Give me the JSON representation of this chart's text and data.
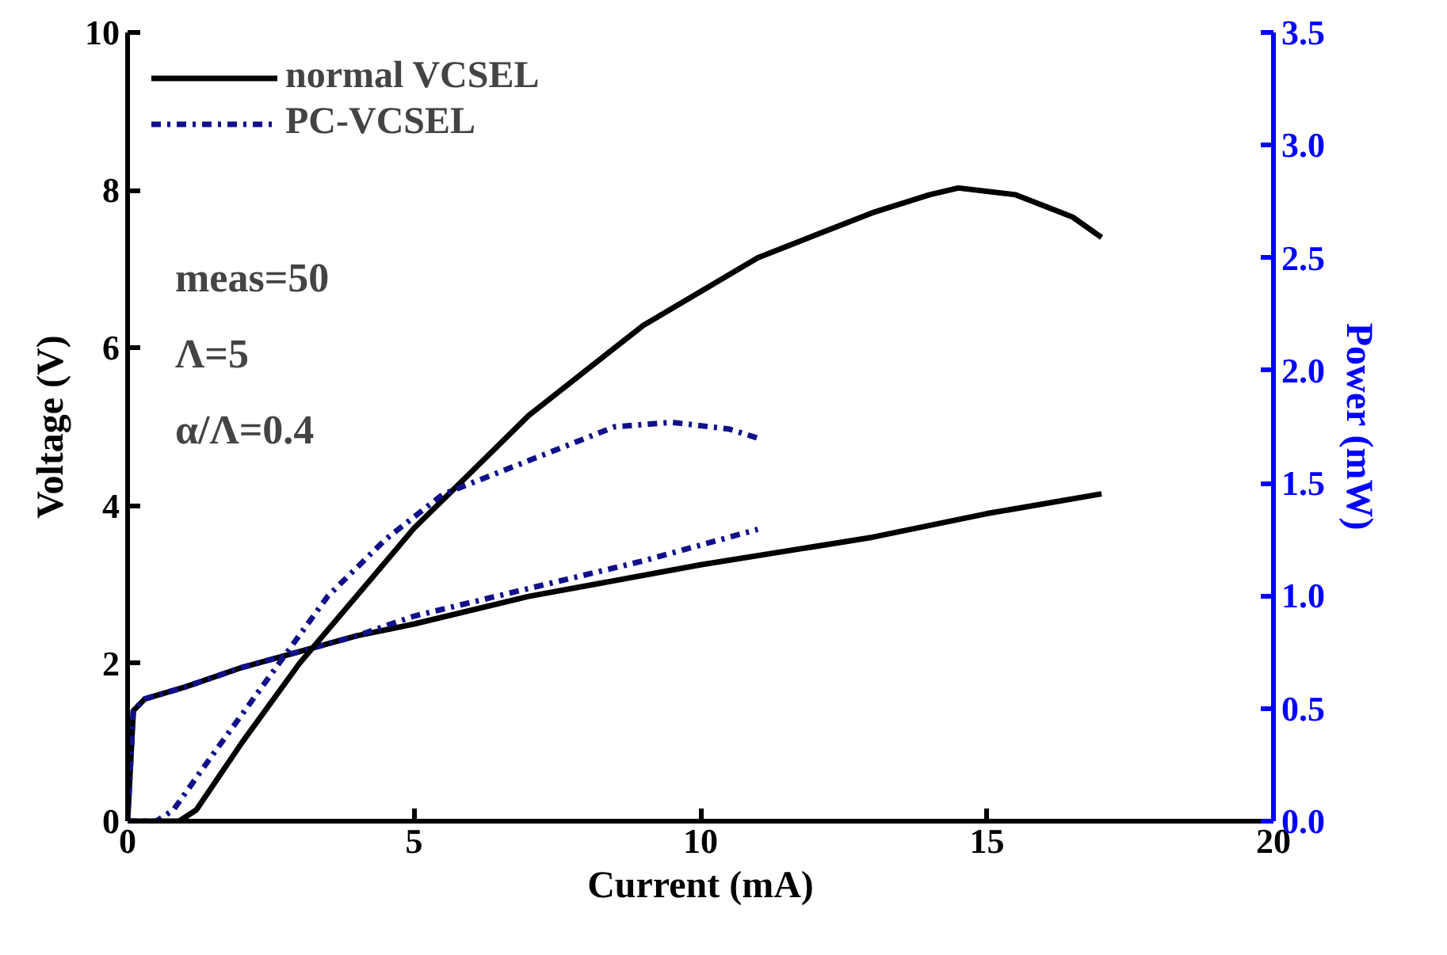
{
  "chart_data": {
    "type": "line",
    "xlabel": "Current (mA)",
    "ylabel": "Voltage (V)",
    "y2label": "Power (mW)",
    "xlim": [
      0,
      20
    ],
    "xticks": [
      0,
      5,
      10,
      15,
      20
    ],
    "ylim": [
      0,
      10
    ],
    "yticks": [
      0,
      2,
      4,
      6,
      8,
      10
    ],
    "y2lim": [
      0,
      3.5
    ],
    "y2ticks": [
      {
        "value": 0,
        "label": "0.0"
      },
      {
        "value": 0.5,
        "label": "0.5"
      },
      {
        "value": 1,
        "label": "1.0"
      },
      {
        "value": 1.5,
        "label": "1.5"
      },
      {
        "value": 2,
        "label": "2.0"
      },
      {
        "value": 2.5,
        "label": "2.5"
      },
      {
        "value": 3,
        "label": "3.0"
      },
      {
        "value": 3.5,
        "label": "3.5"
      }
    ],
    "grid": false,
    "legend": "top left",
    "marker": "none",
    "annotations": [
      "meas=50",
      "Λ=5",
      "α/Λ=0.4"
    ],
    "series": [
      {
        "name": "normal VCSEL",
        "color": "#000000",
        "line_style": "solid",
        "x": [
          0,
          0.1,
          0.3,
          1,
          2,
          3,
          4,
          5,
          7,
          10,
          13,
          15,
          17
        ],
        "values": [
          0,
          1.4,
          1.55,
          1.7,
          1.95,
          2.15,
          2.35,
          2.5,
          2.85,
          3.25,
          3.6,
          3.9,
          4.15
        ]
      },
      {
        "name": "PC-VCSEL",
        "color": "#10108a",
        "line_style": "dashdot",
        "x": [
          0,
          0.1,
          0.3,
          1,
          2,
          3,
          4,
          5,
          7,
          9,
          11
        ],
        "values": [
          0,
          1.4,
          1.55,
          1.7,
          1.95,
          2.15,
          2.35,
          2.6,
          2.95,
          3.3,
          3.7
        ]
      },
      {
        "color": "#000000",
        "line_style": "solid",
        "axis": "y2",
        "x": [
          0,
          0.9,
          1.2,
          2,
          3,
          4,
          5,
          6,
          7,
          8,
          9,
          10,
          11,
          12,
          13,
          14,
          14.5,
          15.5,
          16.5,
          17
        ],
        "values": [
          0,
          0,
          0.05,
          0.35,
          0.7,
          1.0,
          1.3,
          1.55,
          1.8,
          2.0,
          2.2,
          2.35,
          2.5,
          2.6,
          2.7,
          2.78,
          2.81,
          2.78,
          2.68,
          2.59
        ]
      },
      {
        "color": "#10108a",
        "line_style": "dashdot",
        "axis": "y2",
        "x": [
          0,
          0.5,
          0.8,
          1.5,
          2.5,
          3.5,
          4.5,
          5.5,
          6.5,
          7.5,
          8.5,
          9.5,
          10.5,
          11
        ],
        "values": [
          0,
          0,
          0.05,
          0.3,
          0.65,
          1.0,
          1.25,
          1.45,
          1.55,
          1.65,
          1.75,
          1.77,
          1.74,
          1.7
        ]
      }
    ]
  }
}
